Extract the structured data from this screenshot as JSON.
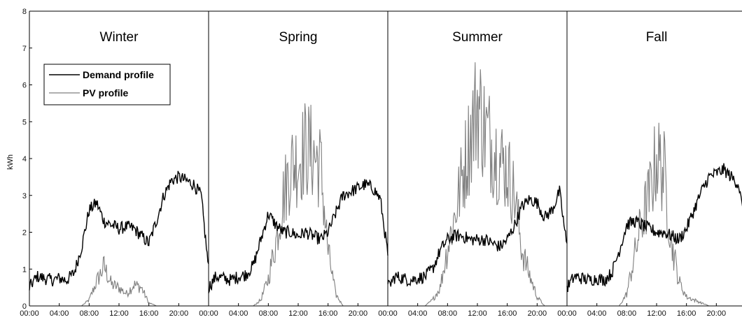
{
  "chart_data": {
    "type": "line",
    "ylabel": "kWh",
    "xlabel": "",
    "ylim": [
      0,
      8
    ],
    "yticks": [
      0,
      1,
      2,
      3,
      4,
      5,
      6,
      7,
      8
    ],
    "xticks": [
      "00:00",
      "04:00",
      "08:00",
      "12:00",
      "16:00",
      "20:00"
    ],
    "grid": false,
    "legend_position": "top-left",
    "legend": [
      "Demand profile",
      "PV profile"
    ],
    "colors": {
      "demand": "#000000",
      "pv": "#7f7f7f"
    },
    "hours": [
      0,
      1,
      2,
      3,
      4,
      5,
      6,
      7,
      8,
      9,
      10,
      11,
      12,
      13,
      14,
      15,
      16,
      17,
      18,
      19,
      20,
      21,
      22,
      23,
      24
    ],
    "panels": [
      {
        "title": "Winter",
        "demand": [
          0.5,
          0.8,
          0.75,
          0.7,
          0.75,
          0.7,
          0.9,
          1.6,
          2.6,
          2.8,
          2.3,
          2.2,
          2.1,
          2.15,
          2.1,
          1.9,
          1.7,
          2.3,
          3.0,
          3.4,
          3.5,
          3.4,
          3.3,
          3.0,
          1.0
        ],
        "pv": [
          0,
          0,
          0,
          0,
          0,
          0,
          0,
          0,
          0.2,
          0.8,
          1.3,
          0.7,
          0.6,
          0.4,
          0.7,
          0.6,
          0.1,
          0,
          0,
          0,
          0,
          0,
          0,
          0,
          0
        ]
      },
      {
        "title": "Spring",
        "demand": [
          0.5,
          0.8,
          0.75,
          0.7,
          0.8,
          0.85,
          1.1,
          1.8,
          2.5,
          2.2,
          2.0,
          2.0,
          1.9,
          2.0,
          1.9,
          1.8,
          2.0,
          2.5,
          3.0,
          3.1,
          3.2,
          3.3,
          3.2,
          2.9,
          1.4
        ],
        "pv": [
          0,
          0,
          0,
          0,
          0,
          0,
          0,
          0.2,
          0.9,
          2.1,
          3.6,
          4.6,
          4.8,
          5.2,
          5.0,
          4.6,
          1.8,
          0.4,
          0,
          0,
          0,
          0,
          0,
          0,
          0
        ]
      },
      {
        "title": "Summer",
        "demand": [
          0.5,
          0.8,
          0.75,
          0.7,
          0.75,
          0.8,
          1.0,
          1.5,
          1.8,
          1.9,
          1.9,
          1.8,
          1.8,
          1.8,
          1.7,
          1.6,
          1.8,
          2.2,
          2.7,
          2.9,
          2.8,
          2.4,
          2.6,
          3.1,
          1.6
        ],
        "pv": [
          0,
          0,
          0,
          0,
          0,
          0,
          0.2,
          0.6,
          1.9,
          3.0,
          4.3,
          5.5,
          6.7,
          5.8,
          5.3,
          4.8,
          4.5,
          3.6,
          1.8,
          1.0,
          0.3,
          0,
          0,
          0,
          0
        ]
      },
      {
        "title": "Fall",
        "demand": [
          0.5,
          0.8,
          0.75,
          0.7,
          0.75,
          0.7,
          0.9,
          1.5,
          2.2,
          2.3,
          2.2,
          2.1,
          2.0,
          2.0,
          1.9,
          1.8,
          2.1,
          2.6,
          3.1,
          3.5,
          3.6,
          3.7,
          3.5,
          3.3,
          1.9
        ],
        "pv": [
          0,
          0,
          0,
          0,
          0,
          0,
          0,
          0,
          0.4,
          1.6,
          2.8,
          3.6,
          4.9,
          4.4,
          2.1,
          0.8,
          0.3,
          0.2,
          0.1,
          0,
          0,
          0,
          0,
          0,
          0
        ]
      }
    ]
  }
}
